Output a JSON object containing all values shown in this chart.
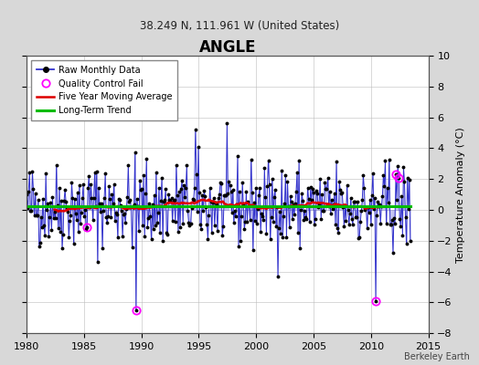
{
  "title": "ANGLE",
  "subtitle": "38.249 N, 111.961 W (United States)",
  "ylabel": "Temperature Anomaly (°C)",
  "attribution": "Berkeley Earth",
  "xlim": [
    1980,
    2015
  ],
  "ylim": [
    -8,
    10
  ],
  "yticks": [
    -8,
    -6,
    -4,
    -2,
    0,
    2,
    4,
    6,
    8,
    10
  ],
  "xticks": [
    1980,
    1985,
    1990,
    1995,
    2000,
    2005,
    2010,
    2015
  ],
  "raw_color": "#3333cc",
  "moving_avg_color": "#dd0000",
  "trend_color": "#00bb00",
  "qc_fail_color": "#ff00ff",
  "background_color": "#d8d8d8",
  "plot_bg_color": "#ffffff",
  "seed": 42
}
